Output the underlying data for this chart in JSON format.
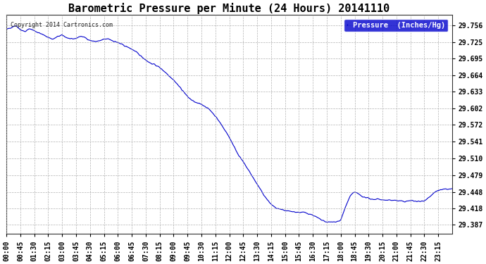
{
  "title": "Barometric Pressure per Minute (24 Hours) 20141110",
  "copyright_text": "Copyright 2014 Cartronics.com",
  "legend_label": "Pressure  (Inches/Hg)",
  "legend_bg": "#0000cc",
  "legend_text_color": "#ffffff",
  "line_color": "#0000cc",
  "background_color": "#ffffff",
  "grid_color": "#aaaaaa",
  "yticks": [
    29.387,
    29.418,
    29.448,
    29.479,
    29.51,
    29.541,
    29.572,
    29.602,
    29.633,
    29.664,
    29.695,
    29.725,
    29.756
  ],
  "ylim": [
    29.37,
    29.775
  ],
  "xlabel": "",
  "ylabel": "",
  "title_fontsize": 11,
  "tick_fontsize": 7.0
}
